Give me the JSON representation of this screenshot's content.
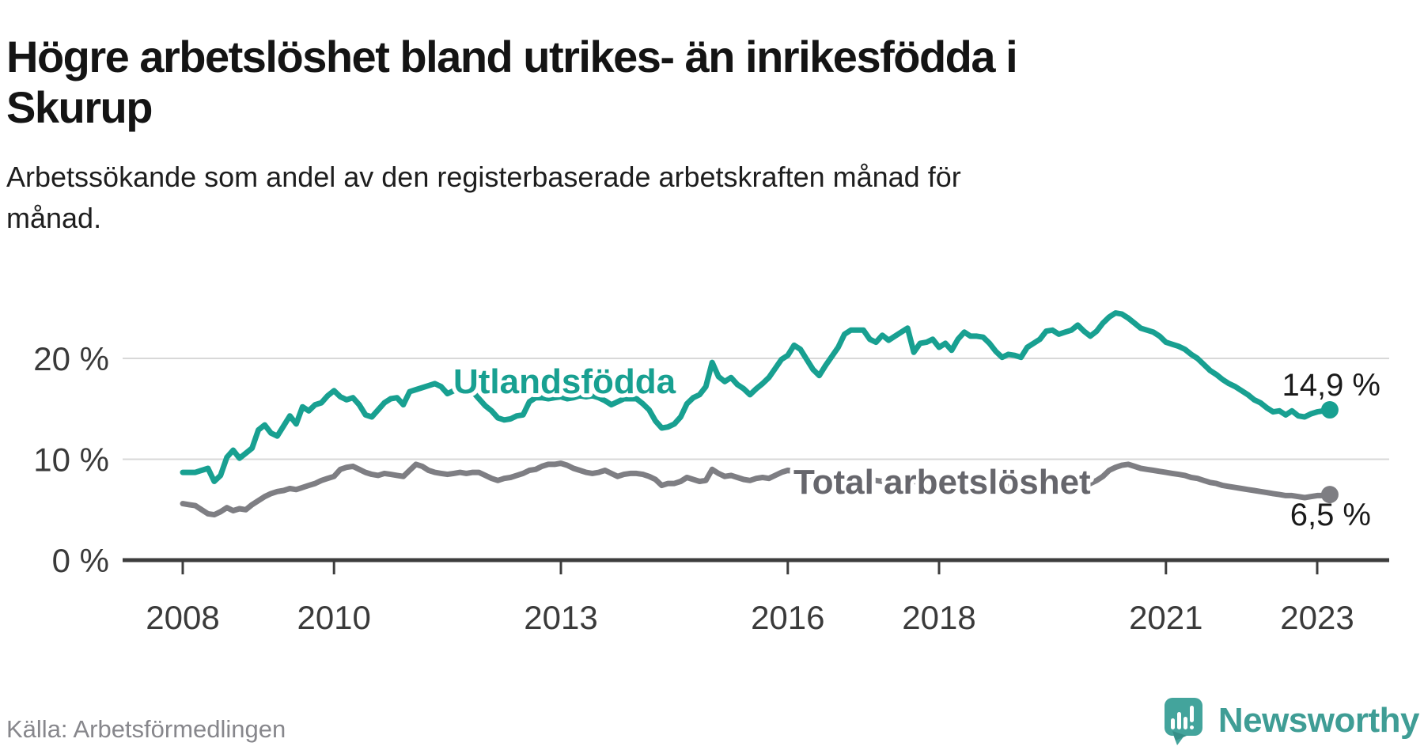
{
  "title": "Högre arbetslöshet bland utrikes- än inrikesfödda i Skurup",
  "subtitle": "Arbetssökande som andel av den registerbaserade arbetskraften månad för månad.",
  "source": "Källa: Arbetsförmedlingen",
  "branding": {
    "name": "Newsworthy",
    "icon": "newsworthy-speech-bubble-bar-chart-icon",
    "icon_color": "#43a49c",
    "text_color": "#3f9d95"
  },
  "colors": {
    "background": "#ffffff",
    "grid": "#d8d8d8",
    "axis": "#3d3d3d",
    "tick_label": "#3a3a3a",
    "value_label": "#1a1a1a"
  },
  "chart_data": {
    "type": "line",
    "title": "Högre arbetslöshet bland utrikes- än inrikesfödda i Skurup",
    "xlabel": "",
    "ylabel": "Arbetssökande som andel av den registerbaserade arbetskraften",
    "unit": "%",
    "freq": "monthly",
    "x_start": "2008-01",
    "x_end": "2023-03",
    "ylim": [
      0,
      26
    ],
    "grid": "horizontal",
    "legend_position": "inline-labels",
    "y_ticks": [
      {
        "value": 0,
        "label": "0 %"
      },
      {
        "value": 10,
        "label": "10 %"
      },
      {
        "value": 20,
        "label": "20 %"
      }
    ],
    "x_ticks": [
      {
        "year": 2008,
        "label": "2008"
      },
      {
        "year": 2010,
        "label": "2010"
      },
      {
        "year": 2013,
        "label": "2013"
      },
      {
        "year": 2016,
        "label": "2016"
      },
      {
        "year": 2018,
        "label": "2018"
      },
      {
        "year": 2021,
        "label": "2021"
      },
      {
        "year": 2023,
        "label": "2023"
      }
    ],
    "series": [
      {
        "name": "Utlandsfödda",
        "color": "#18a091",
        "label_color": "#18a091",
        "end_label": "14,9 %",
        "end_value": 14.9,
        "values": [
          8.7,
          8.7,
          8.7,
          8.9,
          9.1,
          7.8,
          8.4,
          10.2,
          10.9,
          10.1,
          10.6,
          11.1,
          12.9,
          13.4,
          12.6,
          12.3,
          13.3,
          14.3,
          13.5,
          15.2,
          14.8,
          15.4,
          15.6,
          16.3,
          16.8,
          16.2,
          15.9,
          16.1,
          15.4,
          14.4,
          14.2,
          14.9,
          15.6,
          16.0,
          16.1,
          15.4,
          16.7,
          16.9,
          17.1,
          17.3,
          17.5,
          17.2,
          16.5,
          16.8,
          17.1,
          16.9,
          16.7,
          16.0,
          15.3,
          14.8,
          14.1,
          13.9,
          14.0,
          14.3,
          14.4,
          15.7,
          16.1,
          16.1,
          16.0,
          16.1,
          16.2,
          16.0,
          16.1,
          16.3,
          16.2,
          16.3,
          16.1,
          15.8,
          15.4,
          15.7,
          16.0,
          16.0,
          16.0,
          15.5,
          14.9,
          13.8,
          13.1,
          13.2,
          13.5,
          14.2,
          15.5,
          16.1,
          16.4,
          17.2,
          19.6,
          18.2,
          17.7,
          18.1,
          17.4,
          17.0,
          16.4,
          17.0,
          17.5,
          18.1,
          19.0,
          19.9,
          20.3,
          21.3,
          20.9,
          19.9,
          18.9,
          18.3,
          19.3,
          20.2,
          21.1,
          22.4,
          22.8,
          22.8,
          22.8,
          21.9,
          21.6,
          22.3,
          21.8,
          22.2,
          22.6,
          23.0,
          20.6,
          21.5,
          21.6,
          21.9,
          21.1,
          21.5,
          20.8,
          21.9,
          22.6,
          22.2,
          22.2,
          22.1,
          21.5,
          20.7,
          20.1,
          20.4,
          20.3,
          20.1,
          21.1,
          21.5,
          21.9,
          22.7,
          22.8,
          22.4,
          22.6,
          22.8,
          23.3,
          22.7,
          22.2,
          22.7,
          23.5,
          24.1,
          24.5,
          24.4,
          24.0,
          23.5,
          23.0,
          22.8,
          22.6,
          22.2,
          21.6,
          21.4,
          21.2,
          20.9,
          20.4,
          20.0,
          19.4,
          18.8,
          18.4,
          17.9,
          17.5,
          17.2,
          16.8,
          16.4,
          15.9,
          15.6,
          15.1,
          14.7,
          14.8,
          14.4,
          14.8,
          14.3,
          14.2,
          14.5,
          14.7,
          14.8,
          14.9
        ]
      },
      {
        "name": "Total arbetslöshet",
        "color": "#7e7e83",
        "label_color": "#66666c",
        "end_label": "6,5 %",
        "end_value": 6.5,
        "values": [
          5.6,
          5.5,
          5.4,
          5.0,
          4.6,
          4.5,
          4.8,
          5.2,
          4.9,
          5.1,
          5.0,
          5.5,
          5.9,
          6.3,
          6.6,
          6.8,
          6.9,
          7.1,
          7.0,
          7.2,
          7.4,
          7.6,
          7.9,
          8.1,
          8.3,
          9.0,
          9.2,
          9.3,
          9.0,
          8.7,
          8.5,
          8.4,
          8.6,
          8.5,
          8.4,
          8.3,
          8.9,
          9.5,
          9.3,
          8.9,
          8.7,
          8.6,
          8.5,
          8.6,
          8.7,
          8.6,
          8.7,
          8.7,
          8.4,
          8.1,
          7.9,
          8.1,
          8.2,
          8.4,
          8.6,
          8.9,
          9.0,
          9.3,
          9.5,
          9.5,
          9.6,
          9.4,
          9.1,
          8.9,
          8.7,
          8.6,
          8.7,
          8.9,
          8.6,
          8.3,
          8.5,
          8.6,
          8.6,
          8.5,
          8.3,
          8.0,
          7.4,
          7.6,
          7.6,
          7.8,
          8.2,
          8.0,
          7.8,
          7.9,
          9.0,
          8.6,
          8.3,
          8.4,
          8.2,
          8.0,
          7.9,
          8.1,
          8.2,
          8.1,
          8.4,
          8.7,
          8.9,
          8.8,
          8.6,
          8.4,
          8.2,
          8.1,
          8.2,
          8.3,
          8.2,
          8.2,
          8.1,
          8.1,
          8.1,
          8.0,
          7.9,
          7.8,
          7.8,
          7.9,
          8.0,
          8.1,
          7.8,
          7.7,
          7.7,
          7.8,
          7.8,
          7.7,
          7.6,
          7.5,
          7.5,
          7.6,
          7.7,
          7.6,
          7.4,
          7.3,
          7.2,
          7.3,
          7.3,
          7.2,
          7.3,
          7.3,
          7.2,
          7.4,
          7.5,
          7.4,
          7.3,
          7.4,
          7.5,
          7.4,
          7.6,
          7.9,
          8.3,
          8.9,
          9.2,
          9.4,
          9.5,
          9.3,
          9.1,
          9.0,
          8.9,
          8.8,
          8.7,
          8.6,
          8.5,
          8.4,
          8.2,
          8.1,
          7.9,
          7.7,
          7.6,
          7.4,
          7.3,
          7.2,
          7.1,
          7.0,
          6.9,
          6.8,
          6.7,
          6.6,
          6.5,
          6.4,
          6.4,
          6.3,
          6.2,
          6.3,
          6.4,
          6.4,
          6.5
        ]
      }
    ]
  }
}
